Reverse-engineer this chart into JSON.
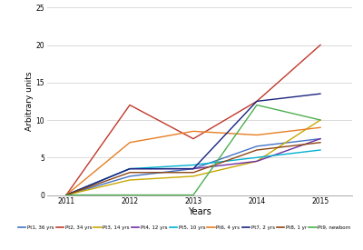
{
  "years": [
    2011,
    2012,
    2013,
    2014,
    2015
  ],
  "series": [
    {
      "label": "Pt1, 36 yrs",
      "color": "#4472c4",
      "values": [
        0,
        2.5,
        3.5,
        6.5,
        7.5
      ]
    },
    {
      "label": "Pt2, 34 yrs",
      "color": "#c0392b",
      "values": [
        0,
        12,
        7.5,
        12.5,
        20
      ]
    },
    {
      "label": "Pt3, 14 yrs",
      "color": "#c8a800",
      "values": [
        0,
        2.0,
        2.5,
        4.5,
        10
      ]
    },
    {
      "label": "Pt4, 12 yrs",
      "color": "#7030a0",
      "values": [
        0,
        3.5,
        3.5,
        4.5,
        7.5
      ]
    },
    {
      "label": "Pt5, 10 yrs",
      "color": "#00b0d0",
      "values": [
        0,
        3.5,
        4.0,
        5.0,
        6.0
      ]
    },
    {
      "label": "Pt6, 4 yrs",
      "color": "#e67e22",
      "values": [
        0,
        7.0,
        8.5,
        8.0,
        9.0
      ]
    },
    {
      "label": "Pt7, 2 yrs",
      "color": "#1a237e",
      "values": [
        0,
        3.5,
        3.5,
        12.5,
        13.5
      ]
    },
    {
      "label": "Pt8, 1 yr",
      "color": "#8b4513",
      "values": [
        0,
        3.0,
        3.0,
        6.0,
        7.0
      ]
    },
    {
      "label": "Pt9, newborn",
      "color": "#4caf50",
      "values": [
        0,
        0,
        0,
        12.0,
        10
      ]
    }
  ],
  "xlabel": "Years",
  "ylabel": "Arbitrary units",
  "ylim": [
    0,
    25
  ],
  "yticks": [
    0,
    5,
    10,
    15,
    20,
    25
  ],
  "xlim": [
    2010.7,
    2015.5
  ],
  "xticks": [
    2011,
    2012,
    2013,
    2014,
    2015
  ],
  "background_color": "#ffffff",
  "grid_color": "#d5d5d5"
}
